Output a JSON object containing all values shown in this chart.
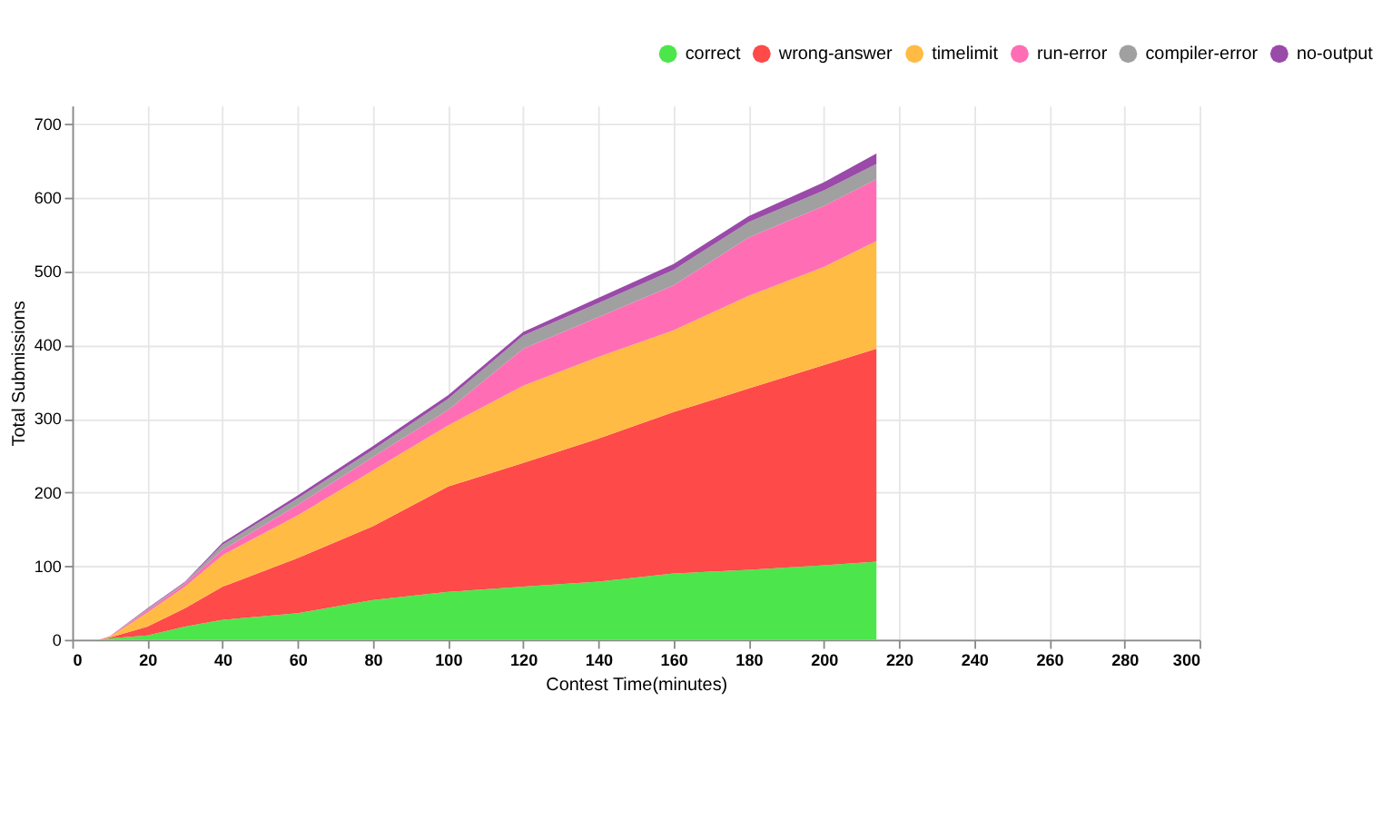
{
  "chart_data": {
    "type": "area",
    "stacked": true,
    "xlabel": "Contest Time(minutes)",
    "ylabel": "Total Submissions",
    "x": [
      0,
      7,
      10,
      20,
      30,
      40,
      60,
      80,
      100,
      120,
      140,
      160,
      180,
      200,
      214
    ],
    "series": [
      {
        "name": "correct",
        "color": "#4ce64c",
        "values": [
          0,
          0,
          2,
          6,
          18,
          27,
          36,
          54,
          65,
          72,
          79,
          90,
          95,
          101,
          106
        ]
      },
      {
        "name": "wrong-answer",
        "color": "#ff4a4a",
        "values": [
          0,
          0,
          1,
          12,
          25,
          45,
          75,
          100,
          143,
          168,
          194,
          219,
          246,
          272,
          289
        ]
      },
      {
        "name": "timelimit",
        "color": "#ffbb44",
        "values": [
          0,
          0,
          1,
          19,
          29,
          43,
          58,
          76,
          83,
          105,
          111,
          111,
          126,
          133,
          146
        ]
      },
      {
        "name": "run-error",
        "color": "#ff6eb4",
        "values": [
          0,
          0,
          1,
          3,
          4,
          7,
          14,
          18,
          21,
          50,
          54,
          61,
          79,
          83,
          84
        ]
      },
      {
        "name": "compiler-error",
        "color": "#a0a0a0",
        "values": [
          0,
          0,
          0,
          2,
          2,
          7,
          9,
          10,
          15,
          18,
          19,
          21,
          21,
          21,
          21
        ]
      },
      {
        "name": "no-output",
        "color": "#9a4aa8",
        "values": [
          0,
          0,
          0,
          1,
          1,
          3,
          4,
          5,
          5,
          5,
          7,
          8,
          8,
          11,
          14
        ]
      }
    ],
    "xlim": [
      0,
      300
    ],
    "xticks": [
      0,
      20,
      40,
      60,
      80,
      100,
      120,
      140,
      160,
      180,
      200,
      220,
      240,
      260,
      280,
      300
    ],
    "ylim": [
      0,
      725
    ],
    "yticks": [
      0,
      100,
      200,
      300,
      400,
      500,
      600,
      700
    ],
    "grid": true,
    "legend": "top right"
  }
}
